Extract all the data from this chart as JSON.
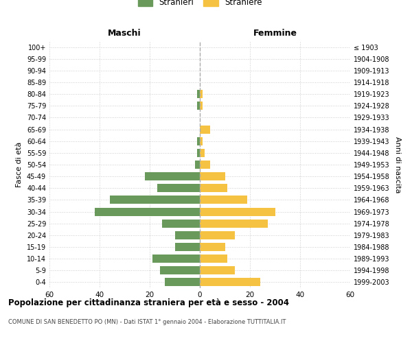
{
  "age_groups": [
    "0-4",
    "5-9",
    "10-14",
    "15-19",
    "20-24",
    "25-29",
    "30-34",
    "35-39",
    "40-44",
    "45-49",
    "50-54",
    "55-59",
    "60-64",
    "65-69",
    "70-74",
    "75-79",
    "80-84",
    "85-89",
    "90-94",
    "95-99",
    "100+"
  ],
  "birth_years": [
    "1999-2003",
    "1994-1998",
    "1989-1993",
    "1984-1988",
    "1979-1983",
    "1974-1978",
    "1969-1973",
    "1964-1968",
    "1959-1963",
    "1954-1958",
    "1949-1953",
    "1944-1948",
    "1939-1943",
    "1934-1938",
    "1929-1933",
    "1924-1928",
    "1919-1923",
    "1914-1918",
    "1909-1913",
    "1904-1908",
    "≤ 1903"
  ],
  "maschi": [
    14,
    16,
    19,
    10,
    10,
    15,
    42,
    36,
    17,
    22,
    2,
    1,
    1,
    0,
    0,
    1,
    1,
    0,
    0,
    0,
    0
  ],
  "femmine": [
    24,
    14,
    11,
    10,
    14,
    27,
    30,
    19,
    11,
    10,
    4,
    2,
    1,
    4,
    0,
    1,
    1,
    0,
    0,
    0,
    0
  ],
  "male_color": "#6a9a5b",
  "female_color": "#f5c242",
  "background_color": "#ffffff",
  "grid_color": "#cccccc",
  "title": "Popolazione per cittadinanza straniera per età e sesso - 2004",
  "subtitle": "COMUNE DI SAN BENEDETTO PO (MN) - Dati ISTAT 1° gennaio 2004 - Elaborazione TUTTITALIA.IT",
  "xlabel_left": "Maschi",
  "xlabel_right": "Femmine",
  "ylabel_left": "Fasce di età",
  "ylabel_right": "Anni di nascita",
  "legend_male": "Stranieri",
  "legend_female": "Straniere",
  "xlim": 60,
  "dashed_color": "#aaaaaa"
}
